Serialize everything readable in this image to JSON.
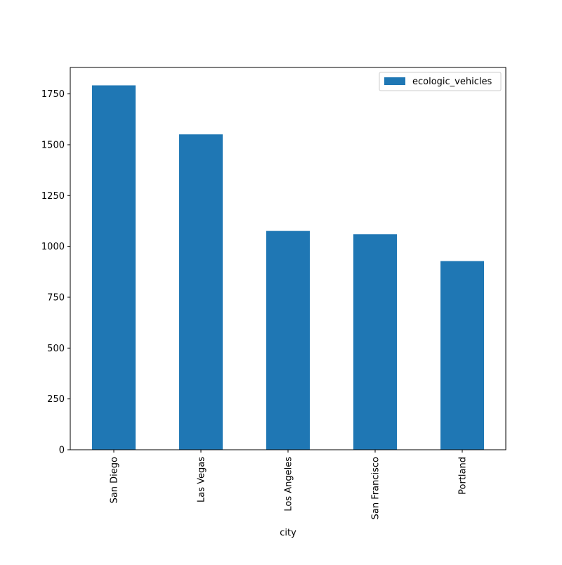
{
  "chart_data": {
    "type": "bar",
    "title": "",
    "xlabel": "city",
    "ylabel": "",
    "categories": [
      "San Diego",
      "Las Vegas",
      "Los Angeles",
      "San Francisco",
      "Portland"
    ],
    "series": [
      {
        "name": "ecologic_vehicles",
        "values": [
          1792,
          1551,
          1076,
          1060,
          928
        ],
        "color": "#1f77b4"
      }
    ],
    "ylim": [
      0,
      1880
    ],
    "yticks": [
      0,
      250,
      500,
      750,
      1000,
      1250,
      1500,
      1750
    ],
    "grid": false,
    "legend_position": "top-right"
  }
}
